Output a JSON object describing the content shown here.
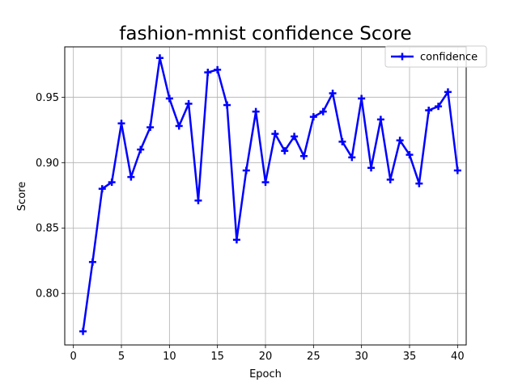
{
  "chart_data": {
    "type": "line",
    "title": "fashion-mnist confidence Score",
    "xlabel": "Epoch",
    "ylabel": "Score",
    "xlim": [
      -0.9,
      40.9
    ],
    "ylim": [
      0.7606,
      0.9885
    ],
    "xticks": [
      0,
      5,
      10,
      15,
      20,
      25,
      30,
      35,
      40
    ],
    "yticks": [
      0.8,
      0.85,
      0.9,
      0.95
    ],
    "xtick_labels": [
      "0",
      "5",
      "10",
      "15",
      "20",
      "25",
      "30",
      "35",
      "40"
    ],
    "ytick_labels": [
      "0.80",
      "0.85",
      "0.90",
      "0.95"
    ],
    "grid": true,
    "legend_position": "upper right",
    "series": [
      {
        "name": "confidence",
        "color": "#0000ff",
        "marker": "plus",
        "x": [
          1,
          2,
          3,
          4,
          5,
          6,
          7,
          8,
          9,
          10,
          11,
          12,
          13,
          14,
          15,
          16,
          17,
          18,
          19,
          20,
          21,
          22,
          23,
          24,
          25,
          26,
          27,
          28,
          29,
          30,
          31,
          32,
          33,
          34,
          35,
          36,
          37,
          38,
          39,
          40
        ],
        "values": [
          0.771,
          0.824,
          0.88,
          0.885,
          0.93,
          0.889,
          0.91,
          0.927,
          0.98,
          0.949,
          0.928,
          0.945,
          0.871,
          0.969,
          0.971,
          0.944,
          0.841,
          0.894,
          0.939,
          0.885,
          0.922,
          0.909,
          0.92,
          0.905,
          0.935,
          0.939,
          0.953,
          0.916,
          0.904,
          0.949,
          0.896,
          0.933,
          0.887,
          0.917,
          0.906,
          0.884,
          0.94,
          0.943,
          0.954,
          0.894
        ]
      }
    ]
  }
}
